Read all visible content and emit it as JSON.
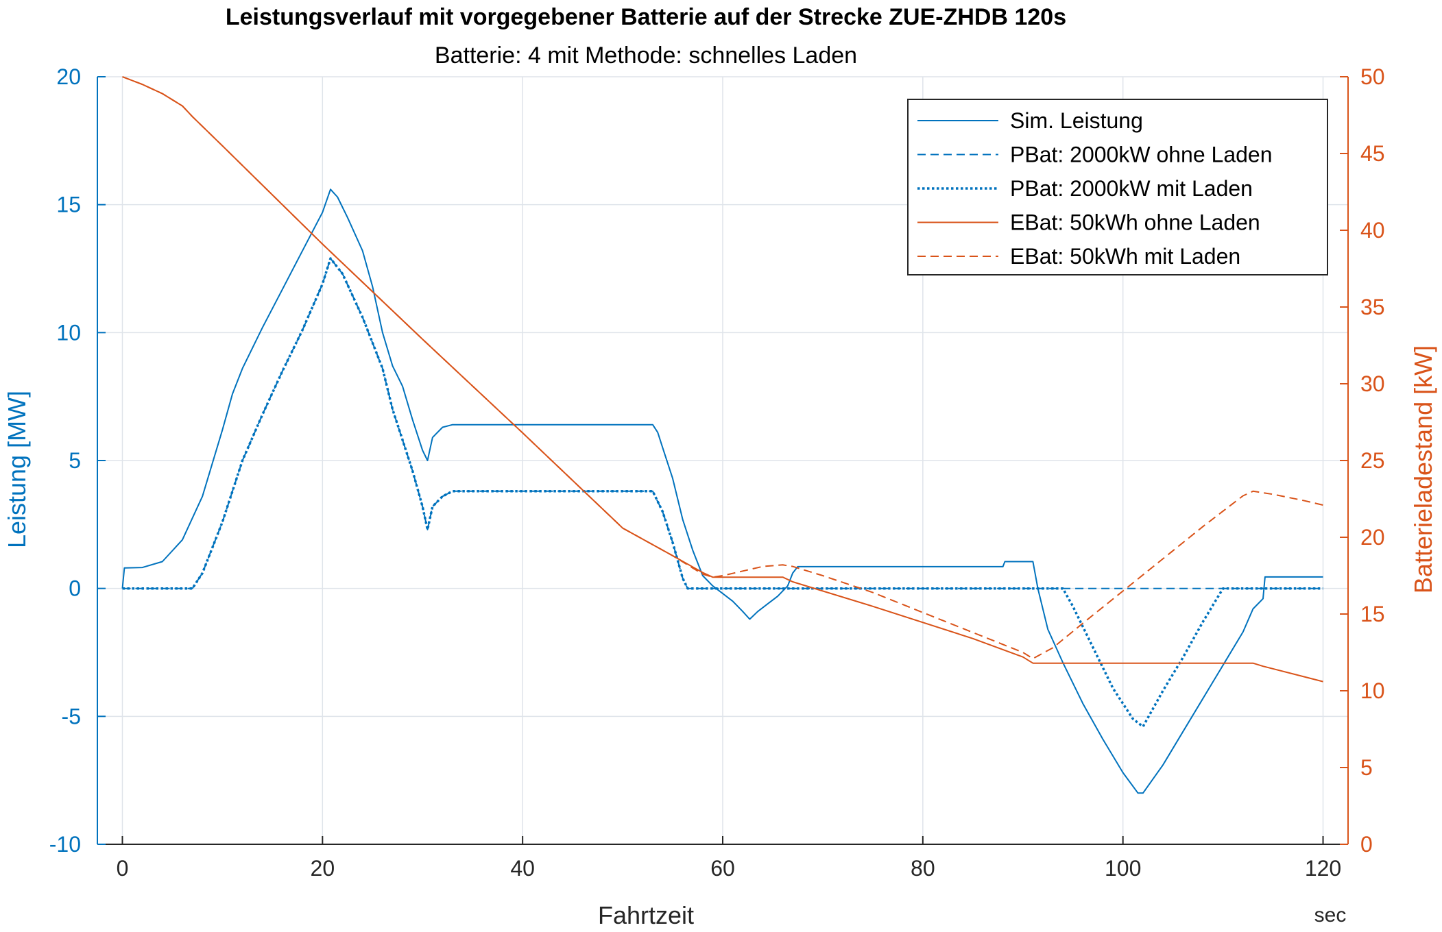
{
  "chart_data": {
    "type": "line",
    "title": "Leistungsverlauf mit vorgegebener Batterie auf der Strecke ZUE-ZHDB 120s",
    "subtitle": "Batterie: 4 mit Methode: schnelles Laden",
    "xlabel": "Fahrtzeit",
    "xunit": "sec",
    "ylabel_left": "Leistung [MW]",
    "ylabel_right": "Batterieladestand [kW]",
    "xlim": [
      -2.5,
      122.5
    ],
    "ylim_left": [
      -10,
      20
    ],
    "ylim_right": [
      0,
      50
    ],
    "x_ticks": [
      0,
      20,
      40,
      60,
      80,
      100,
      120
    ],
    "x_tick_labels": [
      "0",
      "20",
      "40",
      "60",
      "80",
      "100",
      "120"
    ],
    "y_left_ticks": [
      -10,
      -5,
      0,
      5,
      10,
      15,
      20
    ],
    "y_left_tick_labels": [
      "-10",
      "-5",
      "0",
      "5",
      "10",
      "15",
      "20"
    ],
    "y_right_ticks": [
      0,
      5,
      10,
      15,
      20,
      25,
      30,
      35,
      40,
      45,
      50
    ],
    "y_right_tick_labels": [
      "0",
      "5",
      "10",
      "15",
      "20",
      "25",
      "30",
      "35",
      "40",
      "45",
      "50"
    ],
    "grid": true,
    "legend_position": "top-right",
    "colors": {
      "left_axis": "#0072BD",
      "right_axis": "#D95319",
      "grid": "#dfe4ea",
      "box": "#262626"
    },
    "series": [
      {
        "name": "Sim. Leistung",
        "axis": "left",
        "color": "#0072BD",
        "dash": "solid",
        "points": [
          [
            0,
            0
          ],
          [
            0.2,
            0.8
          ],
          [
            2,
            0.82
          ],
          [
            4,
            1.05
          ],
          [
            6,
            1.9
          ],
          [
            8,
            3.6
          ],
          [
            10,
            6.2
          ],
          [
            11,
            7.6
          ],
          [
            12,
            8.6
          ],
          [
            14,
            10.2
          ],
          [
            16,
            11.7
          ],
          [
            18,
            13.2
          ],
          [
            20,
            14.7
          ],
          [
            20.8,
            15.6
          ],
          [
            21.5,
            15.3
          ],
          [
            22.5,
            14.5
          ],
          [
            24,
            13.2
          ],
          [
            25,
            11.8
          ],
          [
            26,
            10
          ],
          [
            27,
            8.7
          ],
          [
            28,
            7.9
          ],
          [
            29,
            6.6
          ],
          [
            30,
            5.4
          ],
          [
            30.5,
            5
          ],
          [
            31,
            5.9
          ],
          [
            32,
            6.3
          ],
          [
            33,
            6.4
          ],
          [
            53,
            6.4
          ],
          [
            53.5,
            6.1
          ],
          [
            54,
            5.5
          ],
          [
            55,
            4.3
          ],
          [
            56,
            2.7
          ],
          [
            57,
            1.5
          ],
          [
            58,
            0.5
          ],
          [
            59,
            0.1
          ],
          [
            60,
            -0.2
          ],
          [
            61,
            -0.5
          ],
          [
            62,
            -0.9
          ],
          [
            62.7,
            -1.2
          ],
          [
            63.5,
            -0.9
          ],
          [
            64.5,
            -0.6
          ],
          [
            65.5,
            -0.3
          ],
          [
            66.5,
            0.1
          ],
          [
            67,
            0.6
          ],
          [
            67.5,
            0.85
          ],
          [
            88,
            0.85
          ],
          [
            88.2,
            1.05
          ],
          [
            91,
            1.05
          ],
          [
            91.5,
            0
          ],
          [
            92.5,
            -1.6
          ],
          [
            94,
            -2.9
          ],
          [
            96,
            -4.5
          ],
          [
            98,
            -5.9
          ],
          [
            100,
            -7.2
          ],
          [
            101.5,
            -8
          ],
          [
            102,
            -8
          ],
          [
            104,
            -6.9
          ],
          [
            106,
            -5.6
          ],
          [
            108,
            -4.3
          ],
          [
            110,
            -3
          ],
          [
            112,
            -1.7
          ],
          [
            113,
            -0.8
          ],
          [
            114,
            -0.4
          ],
          [
            114.2,
            0.45
          ],
          [
            120,
            0.45
          ]
        ]
      },
      {
        "name": "PBat: 2000kW ohne Laden",
        "axis": "left",
        "color": "#0072BD",
        "dash": "dashed",
        "points": [
          [
            0,
            0
          ],
          [
            7,
            0
          ],
          [
            8,
            0.6
          ],
          [
            10,
            2.6
          ],
          [
            12,
            5
          ],
          [
            14,
            6.8
          ],
          [
            16,
            8.5
          ],
          [
            18,
            10.1
          ],
          [
            20,
            11.9
          ],
          [
            20.8,
            12.9
          ],
          [
            22,
            12.3
          ],
          [
            24,
            10.6
          ],
          [
            26,
            8.6
          ],
          [
            27,
            7
          ],
          [
            28,
            5.8
          ],
          [
            29,
            4.6
          ],
          [
            30,
            3.2
          ],
          [
            30.5,
            2.3
          ],
          [
            31,
            3.2
          ],
          [
            32,
            3.6
          ],
          [
            33,
            3.8
          ],
          [
            53,
            3.8
          ],
          [
            54,
            3
          ],
          [
            55,
            1.8
          ],
          [
            56,
            0.4
          ],
          [
            56.5,
            0
          ],
          [
            120,
            0
          ]
        ]
      },
      {
        "name": "PBat: 2000kW mit Laden",
        "axis": "left",
        "color": "#0072BD",
        "dash": "dotted",
        "points": [
          [
            0,
            0
          ],
          [
            7,
            0
          ],
          [
            8,
            0.6
          ],
          [
            10,
            2.6
          ],
          [
            12,
            5
          ],
          [
            14,
            6.8
          ],
          [
            16,
            8.5
          ],
          [
            18,
            10.1
          ],
          [
            20,
            11.9
          ],
          [
            20.8,
            12.9
          ],
          [
            22,
            12.3
          ],
          [
            24,
            10.6
          ],
          [
            26,
            8.6
          ],
          [
            27,
            7
          ],
          [
            28,
            5.8
          ],
          [
            29,
            4.6
          ],
          [
            30,
            3.2
          ],
          [
            30.5,
            2.3
          ],
          [
            31,
            3.2
          ],
          [
            32,
            3.6
          ],
          [
            33,
            3.8
          ],
          [
            53,
            3.8
          ],
          [
            54,
            3
          ],
          [
            55,
            1.8
          ],
          [
            56,
            0.4
          ],
          [
            56.5,
            0
          ],
          [
            94,
            0
          ],
          [
            95,
            -0.7
          ],
          [
            97,
            -2.3
          ],
          [
            99,
            -3.9
          ],
          [
            101,
            -5.1
          ],
          [
            102,
            -5.4
          ],
          [
            104,
            -4
          ],
          [
            106,
            -2.7
          ],
          [
            108,
            -1.3
          ],
          [
            110,
            0
          ],
          [
            120,
            0
          ]
        ]
      },
      {
        "name": "EBat: 50kWh ohne Laden",
        "axis": "right",
        "color": "#D95319",
        "dash": "solid",
        "points": [
          [
            0,
            50
          ],
          [
            2,
            49.5
          ],
          [
            4,
            48.9
          ],
          [
            6,
            48.1
          ],
          [
            7,
            47.4
          ],
          [
            10,
            45.5
          ],
          [
            20,
            39.1
          ],
          [
            30,
            32.9
          ],
          [
            40,
            26.8
          ],
          [
            50,
            20.6
          ],
          [
            55,
            18.8
          ],
          [
            58,
            17.7
          ],
          [
            59,
            17.4
          ],
          [
            66,
            17.4
          ],
          [
            67,
            17.1
          ],
          [
            75,
            15.5
          ],
          [
            85,
            13.4
          ],
          [
            90,
            12.2
          ],
          [
            91,
            11.8
          ],
          [
            108,
            11.8
          ],
          [
            113,
            11.8
          ],
          [
            114,
            11.6
          ],
          [
            120,
            10.6
          ]
        ]
      },
      {
        "name": "EBat: 50kWh mit Laden",
        "axis": "right",
        "color": "#D95319",
        "dash": "dashed",
        "points": [
          [
            0,
            50
          ],
          [
            2,
            49.5
          ],
          [
            4,
            48.9
          ],
          [
            6,
            48.1
          ],
          [
            7,
            47.4
          ],
          [
            10,
            45.5
          ],
          [
            20,
            39.1
          ],
          [
            30,
            32.9
          ],
          [
            40,
            26.8
          ],
          [
            50,
            20.6
          ],
          [
            55,
            18.8
          ],
          [
            58,
            17.6
          ],
          [
            59,
            17.4
          ],
          [
            60,
            17.5
          ],
          [
            62,
            17.8
          ],
          [
            64,
            18.1
          ],
          [
            66,
            18.2
          ],
          [
            67,
            18.1
          ],
          [
            70,
            17.5
          ],
          [
            75,
            16.4
          ],
          [
            80,
            15.1
          ],
          [
            85,
            13.8
          ],
          [
            90,
            12.5
          ],
          [
            91,
            12.1
          ],
          [
            93,
            12.8
          ],
          [
            96,
            14.4
          ],
          [
            100,
            16.5
          ],
          [
            104,
            18.6
          ],
          [
            108,
            20.7
          ],
          [
            111,
            22.2
          ],
          [
            112,
            22.7
          ],
          [
            113,
            23
          ],
          [
            115,
            22.8
          ],
          [
            118,
            22.4
          ],
          [
            120,
            22.1
          ]
        ]
      }
    ]
  }
}
